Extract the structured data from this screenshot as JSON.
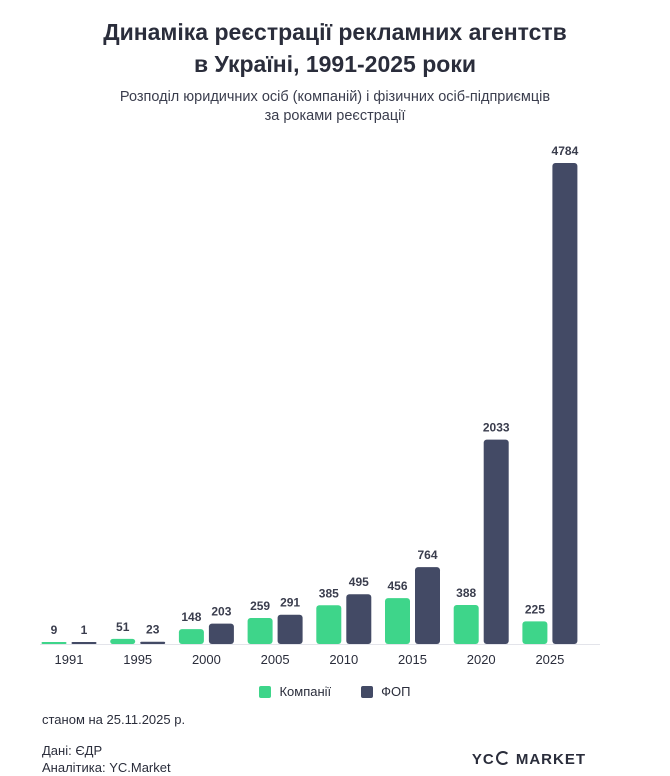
{
  "header": {
    "title_line1": "Динаміка реєстрації рекламних агентств",
    "title_line2": "в Україні, 1991-2025 роки",
    "subtitle_line1": "Розподіл юридичних осіб (компаній) і фізичних осіб-підприємців",
    "subtitle_line2": "за роками реєстрації"
  },
  "colors": {
    "companies": "#3ed58a",
    "fop": "#434a65",
    "label": "#3a3d4d"
  },
  "chart_data": {
    "type": "bar",
    "title": "Динаміка реєстрації рекламних агентств в Україні, 1991-2025 роки",
    "subtitle": "Розподіл юридичних осіб (компаній) і фізичних осіб-підприємців за роками реєстрації",
    "categories": [
      "1991",
      "1995",
      "2000",
      "2005",
      "2010",
      "2015",
      "2020",
      "2025"
    ],
    "series": [
      {
        "name": "Компанії",
        "values": [
          9,
          51,
          148,
          259,
          385,
          456,
          388,
          225
        ]
      },
      {
        "name": "ФОП",
        "values": [
          1,
          23,
          203,
          291,
          495,
          764,
          2033,
          4784
        ]
      }
    ],
    "ylim": [
      0,
      4784
    ],
    "xlabel": "",
    "ylabel": "",
    "grid": false,
    "legend_position": "bottom-center"
  },
  "legend": {
    "companies_label": "Компанії",
    "fop_label": "ФОП"
  },
  "footer": {
    "as_of": "станом на 25.11.2025 р.",
    "source": "Дані: ЄДР",
    "analytics": "Аналітика: YC.Market",
    "logo_left": "YC",
    "logo_right": "MARKET"
  }
}
